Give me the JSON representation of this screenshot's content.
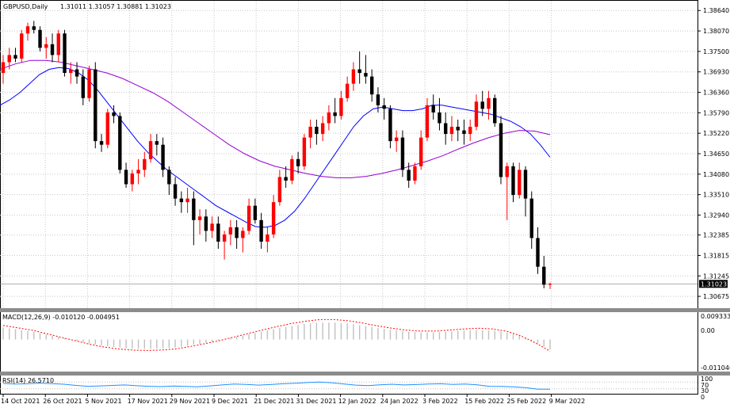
{
  "header": {
    "symbol_label": "GBPUSD,Daily",
    "ohlc_label": "1.31011 1.31057 1.30881 1.31023"
  },
  "price_axis": {
    "ticks": [
      "1.38640",
      "1.38070",
      "1.37500",
      "1.36930",
      "1.36360",
      "1.35790",
      "1.35220",
      "1.34650",
      "1.34080",
      "1.33510",
      "1.32940",
      "1.32385",
      "1.31815",
      "1.31245",
      "1.30675"
    ],
    "current_price": "1.31023",
    "current_price_color": "#000000"
  },
  "macd": {
    "label": "MACD(12,26,9) -0.010120 -0.004951",
    "ticks": [
      "0.009333",
      "0.00",
      "-0.011046"
    ],
    "histogram_color": "#c0c0c0",
    "signal_color": "#ff0000"
  },
  "rsi": {
    "label": "RSI(14) 26.5710",
    "ticks": [
      "100",
      "70",
      "30",
      "0"
    ],
    "line_color": "#1e90ff"
  },
  "time_axis": {
    "labels": [
      "14 Oct 2021",
      "26 Oct 2021",
      "5 Nov 2021",
      "17 Nov 2021",
      "29 Nov 2021",
      "9 Dec 2021",
      "21 Dec 2021",
      "31 Dec 2021",
      "12 Jan 2022",
      "24 Jan 2022",
      "3 Feb 2022",
      "15 Feb 2022",
      "25 Feb 2022",
      "9 Mar 2022"
    ]
  },
  "colors": {
    "bull": "#ff0000",
    "bear": "#000000",
    "ma_fast": "#0000ff",
    "ma_slow": "#9400d3",
    "grid": "#c8c8c8"
  },
  "chart_data": {
    "type": "candlestick",
    "series": [
      {
        "name": "price",
        "values": [
          [
            1.369,
            1.374,
            1.366,
            1.372
          ],
          [
            1.372,
            1.376,
            1.37,
            1.374
          ],
          [
            1.374,
            1.376,
            1.372,
            1.373
          ],
          [
            1.373,
            1.381,
            1.372,
            1.38
          ],
          [
            1.38,
            1.383,
            1.378,
            1.382
          ],
          [
            1.382,
            1.3835,
            1.38,
            1.381
          ],
          [
            1.381,
            1.382,
            1.375,
            1.376
          ],
          [
            1.376,
            1.379,
            1.373,
            1.377
          ],
          [
            1.377,
            1.38,
            1.372,
            1.374
          ],
          [
            1.374,
            1.381,
            1.372,
            1.38
          ],
          [
            1.38,
            1.381,
            1.368,
            1.369
          ],
          [
            1.369,
            1.372,
            1.366,
            1.37
          ],
          [
            1.37,
            1.372,
            1.366,
            1.368
          ],
          [
            1.368,
            1.37,
            1.36,
            1.362
          ],
          [
            1.362,
            1.371,
            1.361,
            1.37
          ],
          [
            1.37,
            1.372,
            1.348,
            1.35
          ],
          [
            1.35,
            1.352,
            1.347,
            1.349
          ],
          [
            1.349,
            1.359,
            1.348,
            1.358
          ],
          [
            1.358,
            1.36,
            1.355,
            1.357
          ],
          [
            1.357,
            1.358,
            1.341,
            1.342
          ],
          [
            1.342,
            1.344,
            1.337,
            1.338
          ],
          [
            1.338,
            1.342,
            1.336,
            1.341
          ],
          [
            1.341,
            1.345,
            1.338,
            1.342
          ],
          [
            1.342,
            1.347,
            1.34,
            1.345
          ],
          [
            1.345,
            1.352,
            1.344,
            1.35
          ],
          [
            1.35,
            1.352,
            1.346,
            1.349
          ],
          [
            1.349,
            1.351,
            1.34,
            1.342
          ],
          [
            1.342,
            1.343,
            1.335,
            1.338
          ],
          [
            1.338,
            1.34,
            1.332,
            1.334
          ],
          [
            1.334,
            1.336,
            1.33,
            1.333
          ],
          [
            1.333,
            1.337,
            1.33,
            1.334
          ],
          [
            1.334,
            1.336,
            1.321,
            1.328
          ],
          [
            1.328,
            1.331,
            1.324,
            1.329
          ],
          [
            1.329,
            1.331,
            1.322,
            1.325
          ],
          [
            1.325,
            1.329,
            1.323,
            1.327
          ],
          [
            1.327,
            1.329,
            1.32,
            1.322
          ],
          [
            1.322,
            1.325,
            1.317,
            1.324
          ],
          [
            1.324,
            1.328,
            1.321,
            1.326
          ],
          [
            1.326,
            1.328,
            1.32,
            1.323
          ],
          [
            1.323,
            1.326,
            1.319,
            1.325
          ],
          [
            1.325,
            1.334,
            1.324,
            1.332
          ],
          [
            1.332,
            1.334,
            1.327,
            1.328
          ],
          [
            1.328,
            1.33,
            1.32,
            1.322
          ],
          [
            1.322,
            1.326,
            1.319,
            1.324
          ],
          [
            1.324,
            1.335,
            1.323,
            1.333
          ],
          [
            1.333,
            1.342,
            1.332,
            1.34
          ],
          [
            1.34,
            1.343,
            1.337,
            1.339
          ],
          [
            1.339,
            1.346,
            1.338,
            1.345
          ],
          [
            1.345,
            1.347,
            1.341,
            1.343
          ],
          [
            1.343,
            1.352,
            1.342,
            1.351
          ],
          [
            1.351,
            1.356,
            1.348,
            1.354
          ],
          [
            1.354,
            1.356,
            1.349,
            1.352
          ],
          [
            1.352,
            1.357,
            1.35,
            1.355
          ],
          [
            1.355,
            1.36,
            1.353,
            1.358
          ],
          [
            1.358,
            1.362,
            1.355,
            1.357
          ],
          [
            1.357,
            1.364,
            1.356,
            1.362
          ],
          [
            1.362,
            1.368,
            1.361,
            1.366
          ],
          [
            1.366,
            1.372,
            1.364,
            1.37
          ],
          [
            1.37,
            1.375,
            1.366,
            1.369
          ],
          [
            1.369,
            1.374,
            1.366,
            1.368
          ],
          [
            1.368,
            1.37,
            1.361,
            1.363
          ],
          [
            1.363,
            1.365,
            1.358,
            1.36
          ],
          [
            1.36,
            1.362,
            1.356,
            1.359
          ],
          [
            1.359,
            1.36,
            1.348,
            1.35
          ],
          [
            1.35,
            1.353,
            1.347,
            1.351
          ],
          [
            1.351,
            1.353,
            1.34,
            1.342
          ],
          [
            1.342,
            1.344,
            1.337,
            1.339
          ],
          [
            1.339,
            1.344,
            1.338,
            1.343
          ],
          [
            1.343,
            1.353,
            1.342,
            1.351
          ],
          [
            1.351,
            1.362,
            1.35,
            1.36
          ],
          [
            1.36,
            1.363,
            1.356,
            1.358
          ],
          [
            1.358,
            1.362,
            1.353,
            1.355
          ],
          [
            1.355,
            1.358,
            1.349,
            1.352
          ],
          [
            1.352,
            1.357,
            1.35,
            1.354
          ],
          [
            1.354,
            1.356,
            1.35,
            1.353
          ],
          [
            1.353,
            1.356,
            1.349,
            1.352
          ],
          [
            1.352,
            1.356,
            1.35,
            1.354
          ],
          [
            1.354,
            1.363,
            1.353,
            1.361
          ],
          [
            1.361,
            1.364,
            1.357,
            1.359
          ],
          [
            1.359,
            1.364,
            1.356,
            1.362
          ],
          [
            1.362,
            1.363,
            1.354,
            1.355
          ],
          [
            1.355,
            1.357,
            1.338,
            1.34
          ],
          [
            1.34,
            1.344,
            1.328,
            1.343
          ],
          [
            1.343,
            1.344,
            1.333,
            1.335
          ],
          [
            1.335,
            1.344,
            1.334,
            1.342
          ],
          [
            1.342,
            1.343,
            1.329,
            1.334
          ],
          [
            1.334,
            1.336,
            1.32,
            1.323
          ],
          [
            1.323,
            1.326,
            1.313,
            1.315
          ],
          [
            1.315,
            1.318,
            1.309,
            1.31
          ],
          [
            1.3101,
            1.3106,
            1.3088,
            1.3102
          ]
        ]
      },
      {
        "name": "ma_fast",
        "values": [
          1.36,
          1.3615,
          1.3635,
          1.366,
          1.3685,
          1.37,
          1.3705,
          1.3702,
          1.369,
          1.367,
          1.364,
          1.3605,
          1.357,
          1.3535,
          1.35,
          1.347,
          1.3445,
          1.342,
          1.34,
          1.338,
          1.336,
          1.334,
          1.332,
          1.3305,
          1.329,
          1.3275,
          1.3262,
          1.326,
          1.3265,
          1.328,
          1.3305,
          1.334,
          1.338,
          1.342,
          1.346,
          1.35,
          1.354,
          1.357,
          1.359,
          1.3595,
          1.359,
          1.3585,
          1.3585,
          1.359,
          1.36,
          1.36,
          1.3595,
          1.359,
          1.3585,
          1.358,
          1.3575,
          1.3565,
          1.3555,
          1.354,
          1.352,
          1.349,
          1.3455
        ]
      },
      {
        "name": "ma_slow",
        "values": [
          1.37,
          1.3715,
          1.3725,
          1.3725,
          1.372,
          1.371,
          1.37,
          1.369,
          1.3675,
          1.3655,
          1.3635,
          1.361,
          1.358,
          1.355,
          1.352,
          1.349,
          1.3465,
          1.3445,
          1.343,
          1.342,
          1.341,
          1.3402,
          1.3398,
          1.3398,
          1.3402,
          1.341,
          1.342,
          1.3432,
          1.3445,
          1.346,
          1.3478,
          1.3495,
          1.351,
          1.3522,
          1.353,
          1.3528,
          1.3518
        ]
      },
      {
        "name": "macd_signal",
        "values": [
          0.006,
          0.005,
          0.004,
          0.0025,
          0.001,
          -0.0005,
          -0.002,
          -0.0032,
          -0.004,
          -0.0045,
          -0.0047,
          -0.0045,
          -0.004,
          -0.003,
          -0.0018,
          -0.0005,
          0.001,
          0.0025,
          0.004,
          0.0055,
          0.0068,
          0.0078,
          0.0085,
          0.0085,
          0.008,
          0.007,
          0.0058,
          0.0048,
          0.004,
          0.0036,
          0.0036,
          0.004,
          0.0045,
          0.0048,
          0.0045,
          0.0035,
          0.0015,
          -0.0015,
          -0.005
        ]
      },
      {
        "name": "rsi",
        "values": [
          62,
          58,
          60,
          64,
          61,
          57,
          50,
          45,
          47,
          50,
          53,
          48,
          45,
          43,
          46,
          44,
          42,
          47,
          53,
          58,
          56,
          52,
          55,
          60,
          63,
          67,
          70,
          66,
          59,
          52,
          49,
          54,
          57,
          53,
          55,
          58,
          60,
          56,
          58,
          54,
          45,
          44,
          42,
          36,
          27,
          27
        ]
      }
    ],
    "ylim": [
      1.305,
      1.388
    ],
    "macd_ylim": [
      -0.013,
      0.011
    ],
    "rsi_ylim": [
      0,
      100
    ],
    "grid": true
  }
}
